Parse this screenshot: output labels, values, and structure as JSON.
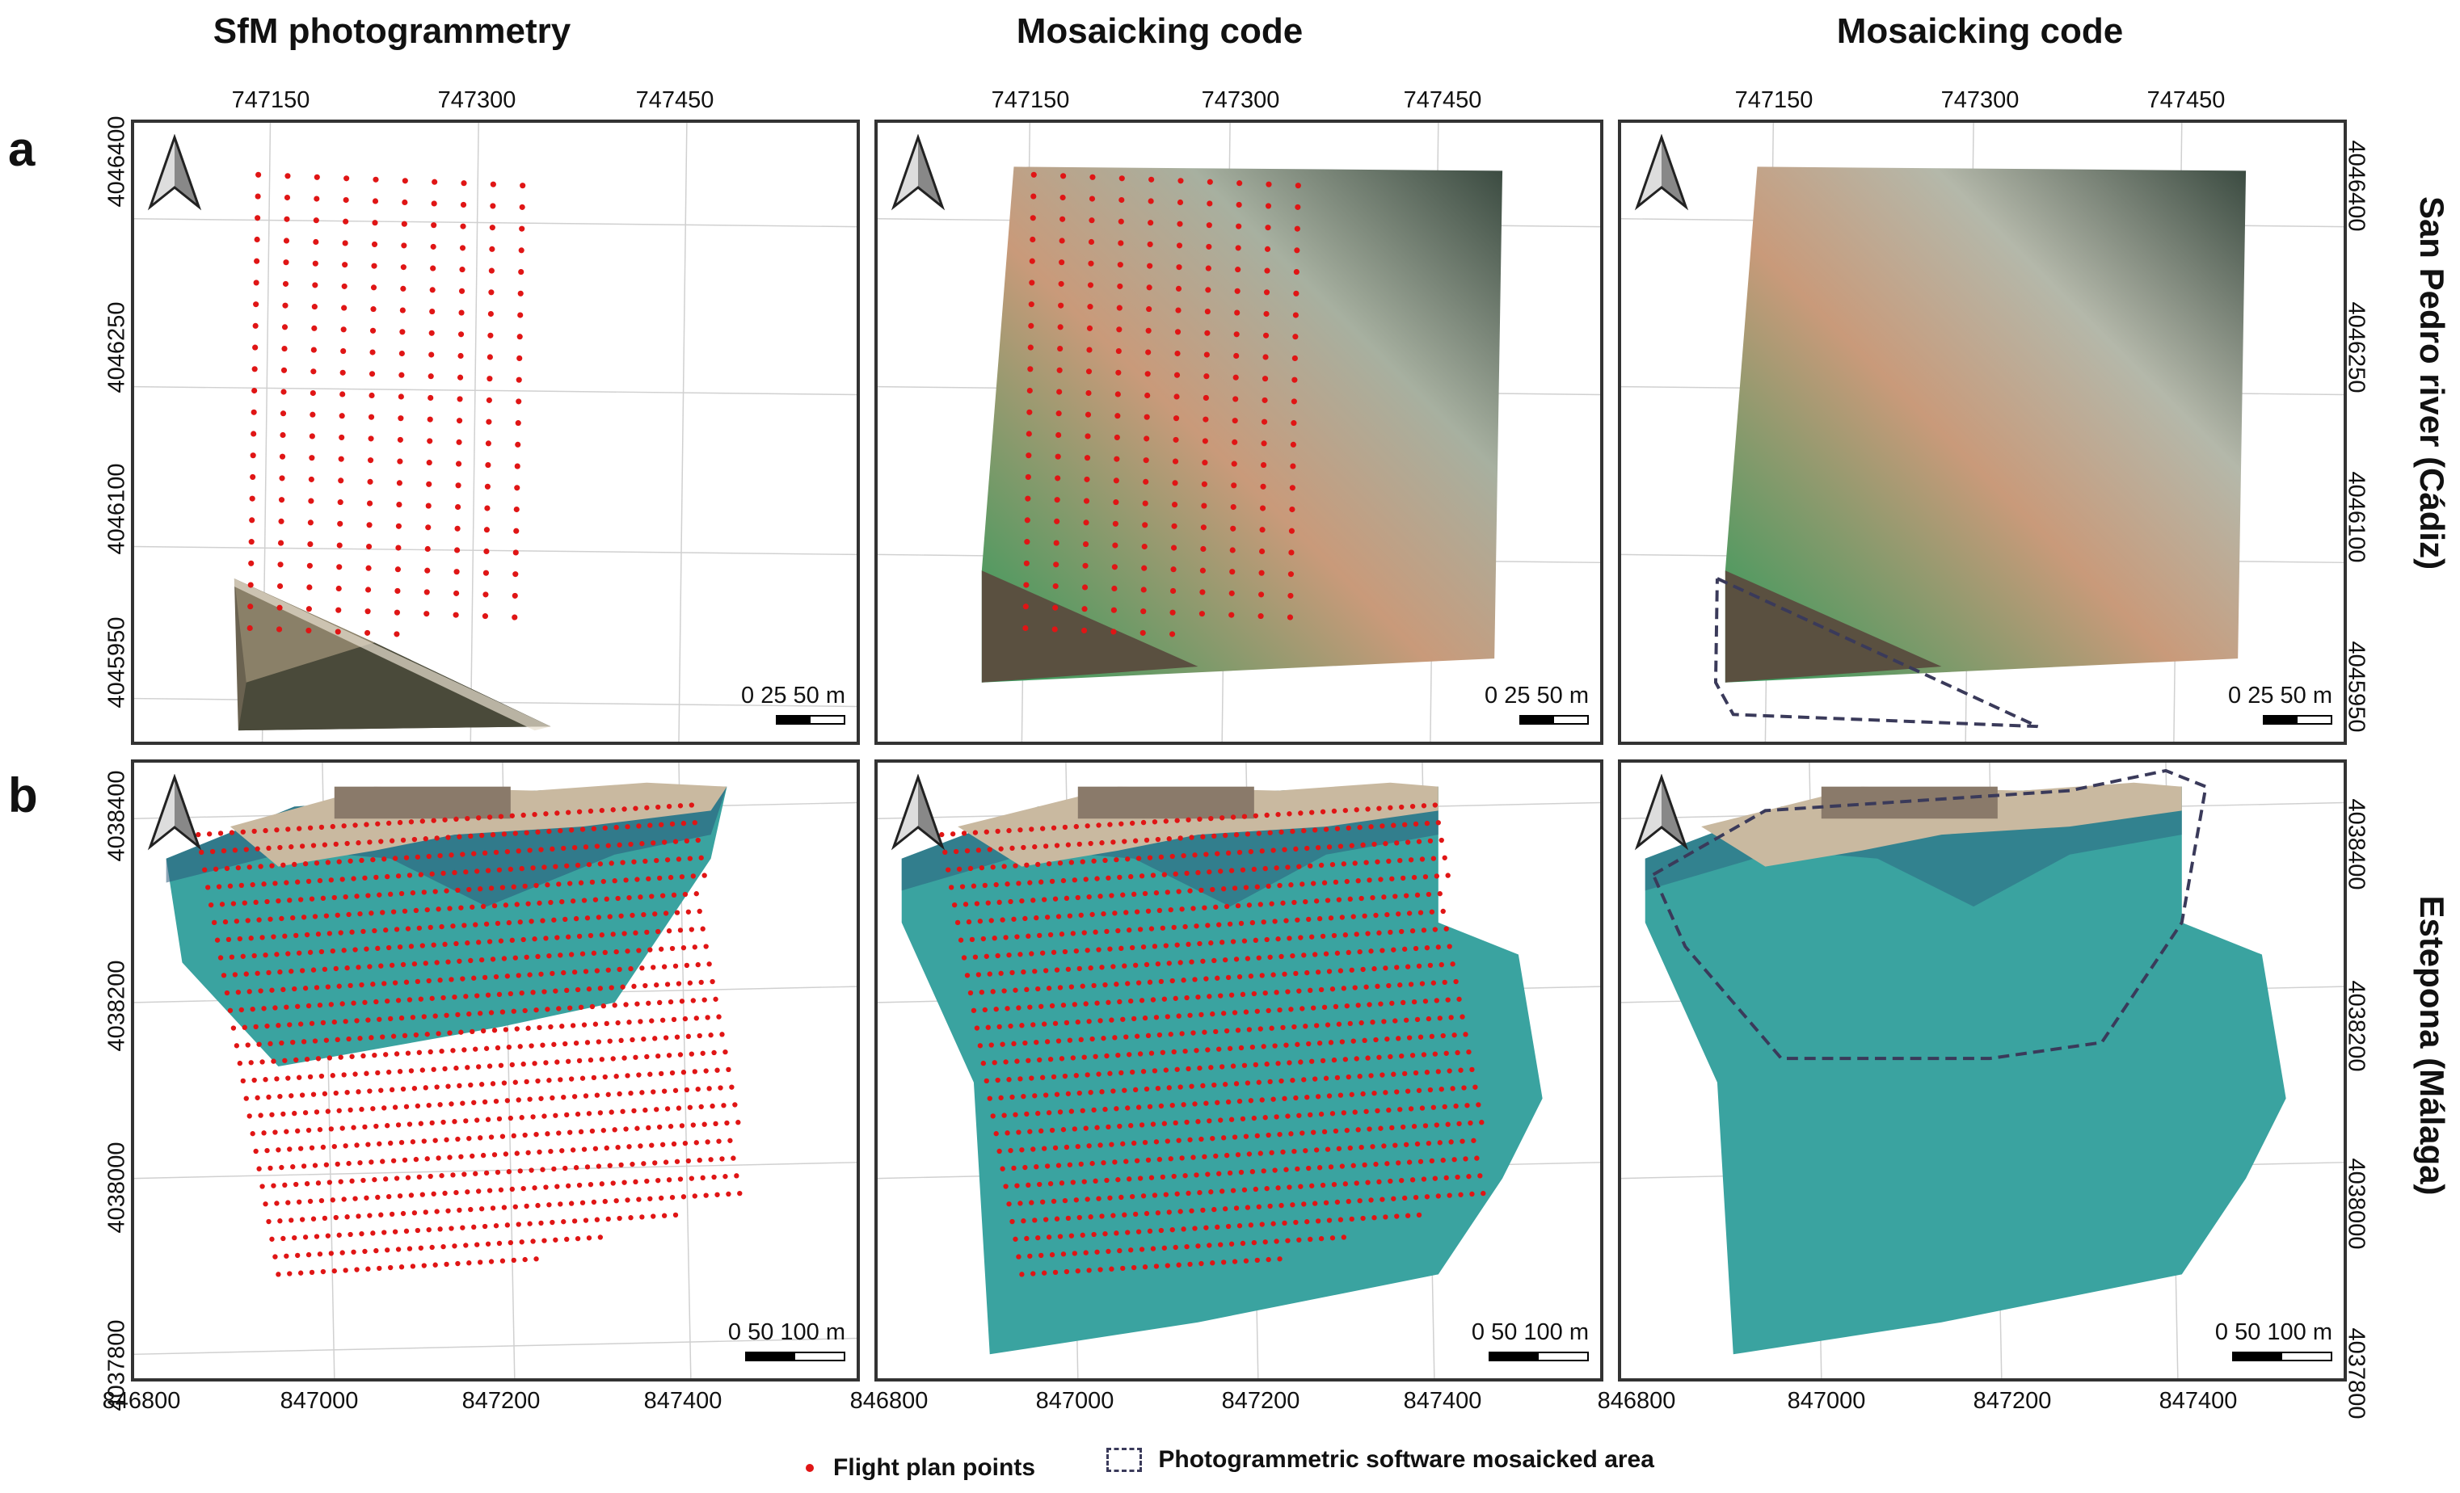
{
  "columns": {
    "c1": "SfM photogrammetry",
    "c2": "Mosaicking code",
    "c3": "Mosaicking code"
  },
  "rows": {
    "a": {
      "letter": "a",
      "site": "San Pedro river (Cádiz)"
    },
    "b": {
      "letter": "b",
      "site": "Estepona (Málaga)"
    }
  },
  "ticks": {
    "a_top": [
      "747150",
      "747300",
      "747450"
    ],
    "a_left": [
      "4046400",
      "4046250",
      "4046100",
      "4045950"
    ],
    "b_bottom": [
      "846800",
      "847000",
      "847200",
      "847400"
    ],
    "b_left": [
      "4038400",
      "4038200",
      "4038000",
      "4037800"
    ]
  },
  "scales": {
    "a": "0  25 50 m",
    "b": "0    50   100 m"
  },
  "legend": {
    "points": "Flight plan points",
    "area": "Photogrammetric software mosaicked area"
  },
  "colors": {
    "flight_point": "#e01515",
    "outline": "#3a3a5a",
    "water_a": "#2f9a5a",
    "sand_a": "#c99a7a",
    "water_b": "#3aa3a0",
    "deep_b": "#2a5a7a"
  },
  "icons": [
    "north-arrow-icon"
  ]
}
